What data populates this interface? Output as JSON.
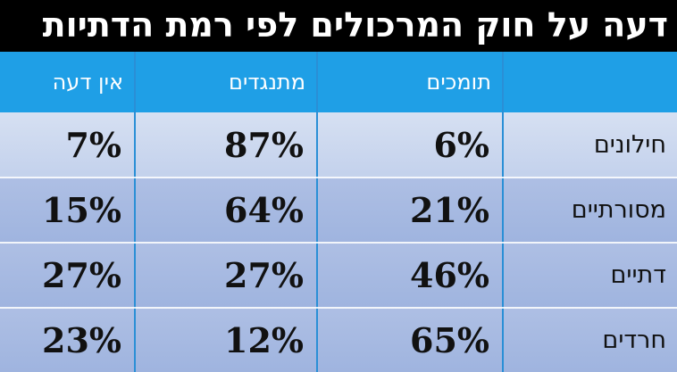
{
  "chart_data": {
    "type": "table",
    "title": "דעה על חוק המרכולים לפי רמת הדתיות",
    "columns": [
      "תומכים",
      "מתנגדים",
      "אין דעה"
    ],
    "categories": [
      "חילונים",
      "מסורתיים",
      "דתיים",
      "חרדים"
    ],
    "series": [
      {
        "name": "תומכים",
        "values": [
          "6%",
          "21%",
          "46%",
          "65%"
        ]
      },
      {
        "name": "מתנגדים",
        "values": [
          "87%",
          "64%",
          "27%",
          "12%"
        ]
      },
      {
        "name": "אין דעה",
        "values": [
          "7%",
          "15%",
          "27%",
          "23%"
        ]
      }
    ]
  },
  "colors": {
    "header_background": "#1f9fe6",
    "title_background": "#000000",
    "row_light": "#d6e0f2",
    "row_dark": "#aebfe4"
  }
}
